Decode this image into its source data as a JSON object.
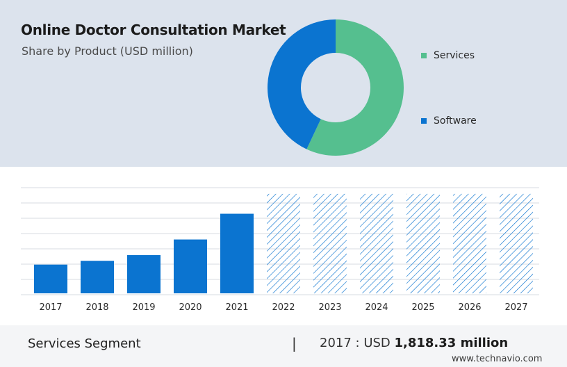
{
  "header": {
    "title": "Online Doctor Consultation Market",
    "subtitle": "Share by Product (USD million)"
  },
  "colors": {
    "services": "#55bf8f",
    "software": "#0b74d0",
    "bar": "#0b74d0",
    "hatch": "#0b74d0",
    "grid": "#d7dbe2"
  },
  "chart_data": [
    {
      "type": "pie",
      "subtype": "donut",
      "series": [
        {
          "name": "Services",
          "value": 57
        },
        {
          "name": "Software",
          "value": 43
        }
      ],
      "legend": "right"
    },
    {
      "type": "bar",
      "categories": [
        "2017",
        "2018",
        "2019",
        "2020",
        "2021",
        "2022",
        "2023",
        "2024",
        "2025",
        "2026",
        "2027"
      ],
      "values": [
        1818.33,
        2060,
        2420,
        3410,
        5040,
        6300,
        6300,
        6300,
        6300,
        6300,
        6300
      ],
      "forecast_from": "2022",
      "forecast_style": "hatched",
      "ylim": [
        0,
        7000
      ],
      "grid": true,
      "xlabel": "",
      "ylabel": ""
    }
  ],
  "footer": {
    "segment": "Services Segment",
    "divider": "|",
    "stat_prefix": "2017 : USD ",
    "stat_value": "1,818.33 million",
    "credit": "www.technavio.com"
  }
}
